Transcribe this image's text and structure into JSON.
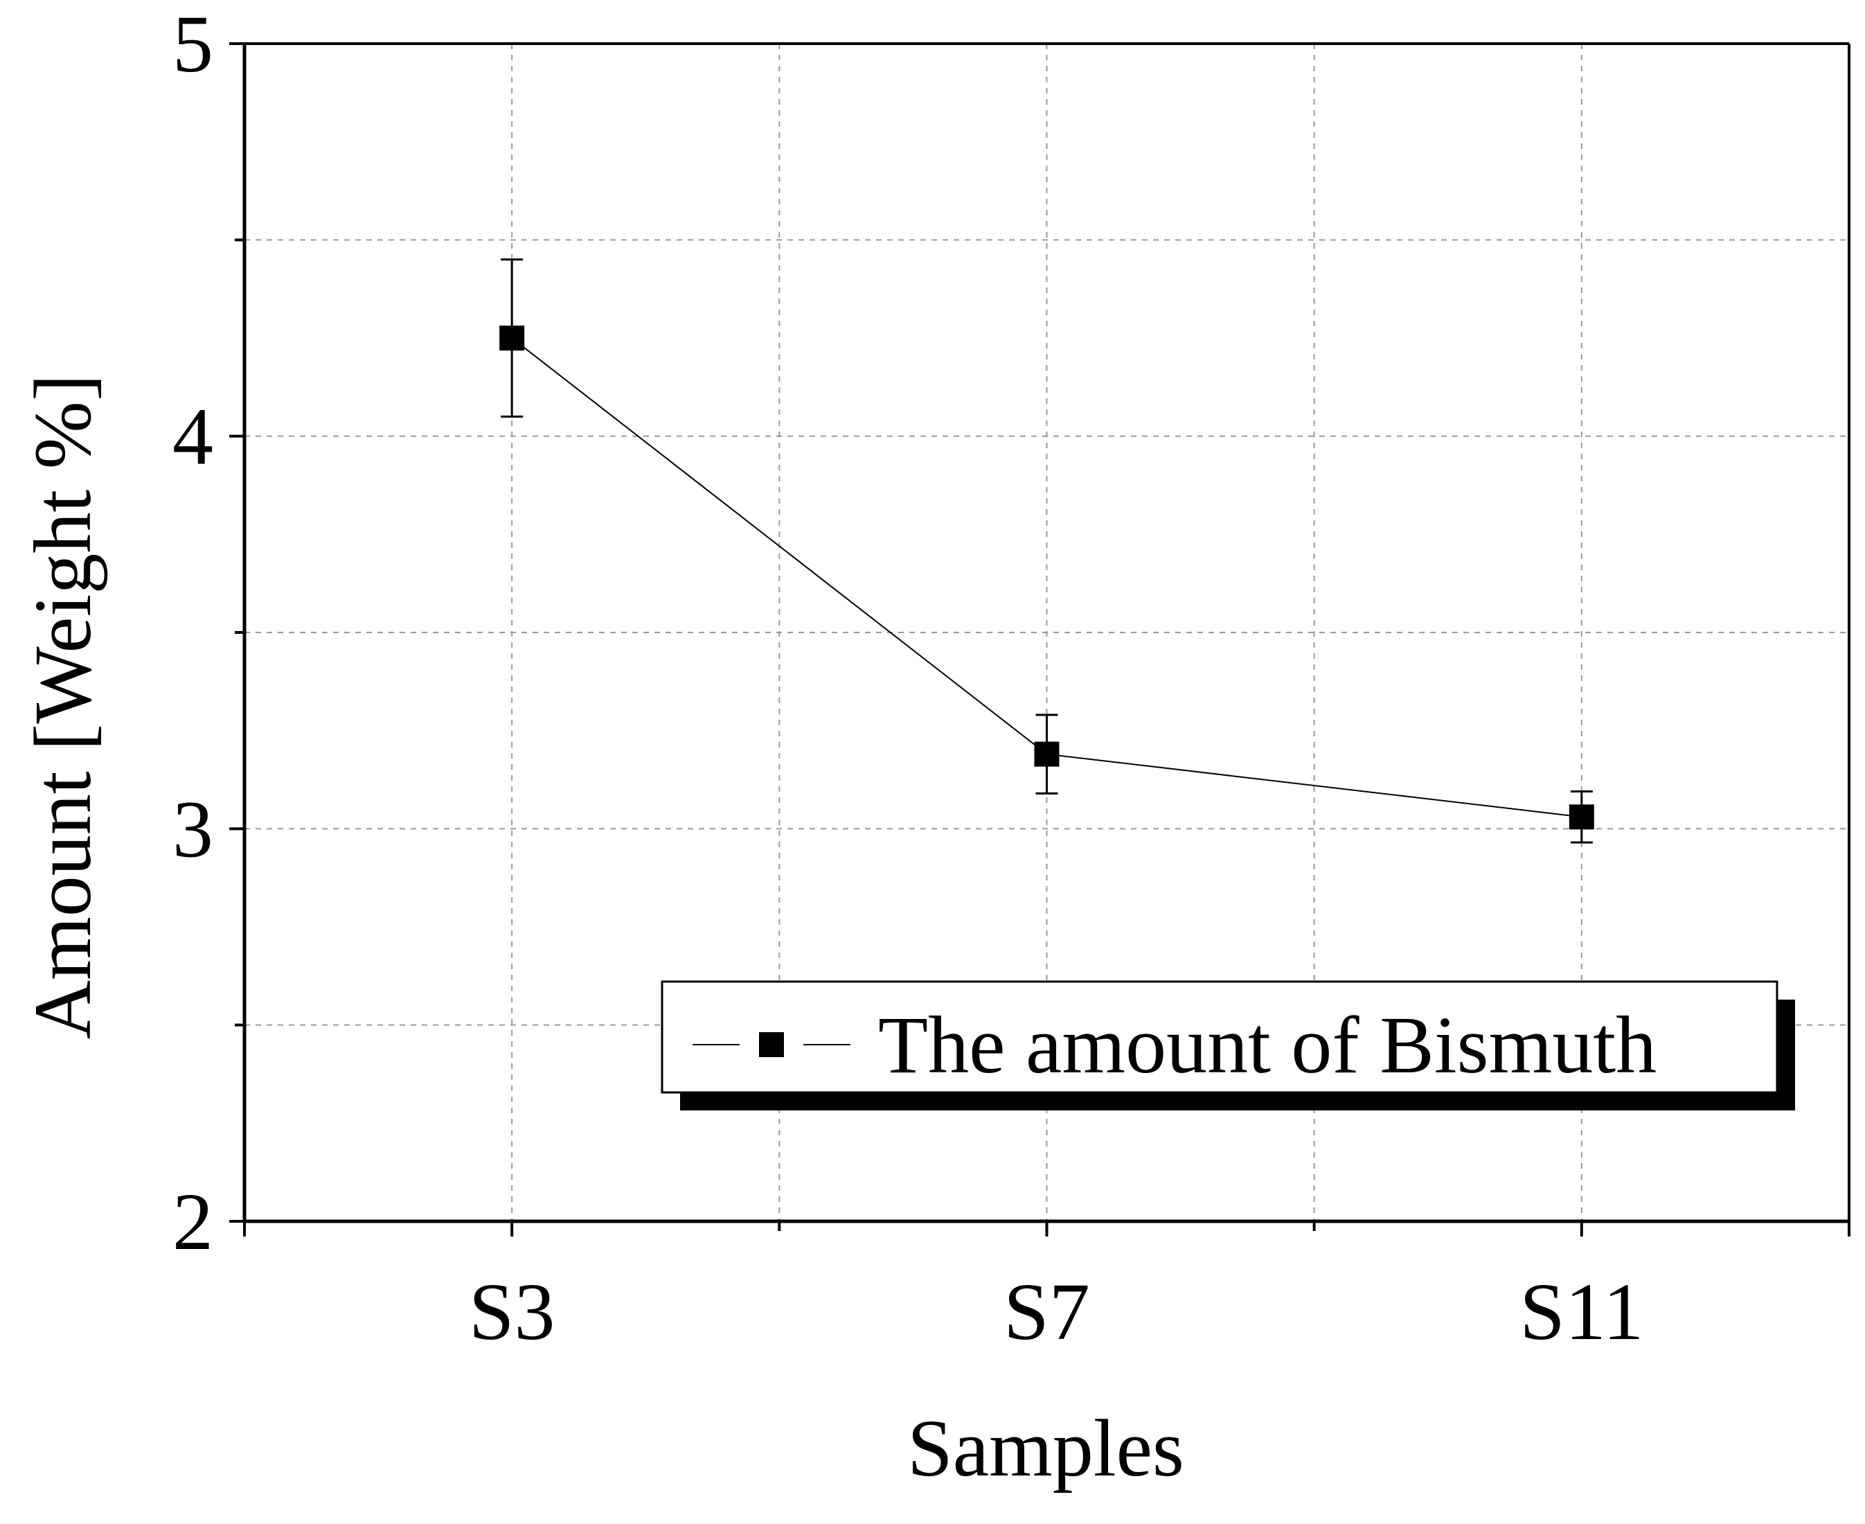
{
  "chart_data": {
    "type": "line",
    "title": "",
    "xlabel": "Samples",
    "ylabel": "Amount [Weight %]",
    "categories": [
      "S3",
      "S7",
      "S11"
    ],
    "ylim": [
      2,
      5
    ],
    "yticks": [
      "2",
      "3",
      "4",
      "5"
    ],
    "yminor_step": 0.5,
    "grid": true,
    "legend_position": "bottom-right",
    "series": [
      {
        "name": "The amount of Bismuth",
        "values": [
          4.25,
          3.19,
          3.03
        ],
        "error": [
          0.2,
          0.1,
          0.065
        ],
        "marker": "square",
        "color": "#000000"
      }
    ]
  }
}
